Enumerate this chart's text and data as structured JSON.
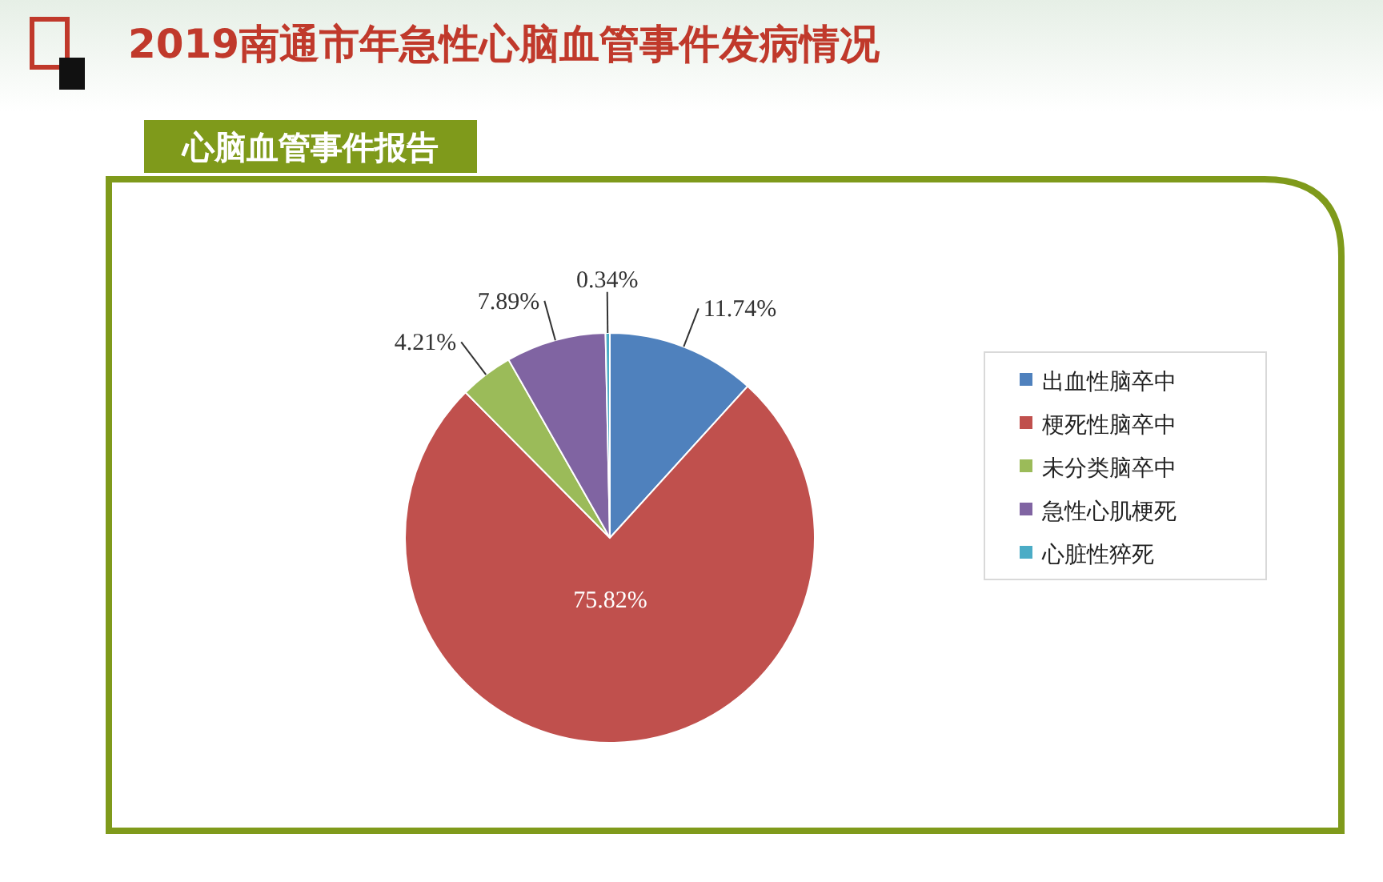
{
  "chart_data": {
    "type": "pie",
    "title": "2019南通市年急性心脑血管事件发病情况",
    "subtitle": "心脑血管事件报告",
    "categories": [
      "出血性脑卒中",
      "梗死性脑卒中",
      "未分类脑卒中",
      "急性心肌梗死",
      "心脏性猝死"
    ],
    "values": [
      11.74,
      75.82,
      4.21,
      7.89,
      0.34
    ],
    "colors": [
      "#4f81bd",
      "#c0504d",
      "#9bbb59",
      "#8064a2",
      "#4bacc6"
    ],
    "value_labels": [
      "11.74%",
      "75.82%",
      "4.21%",
      "7.89%",
      "0.34%"
    ],
    "legend": "right"
  }
}
